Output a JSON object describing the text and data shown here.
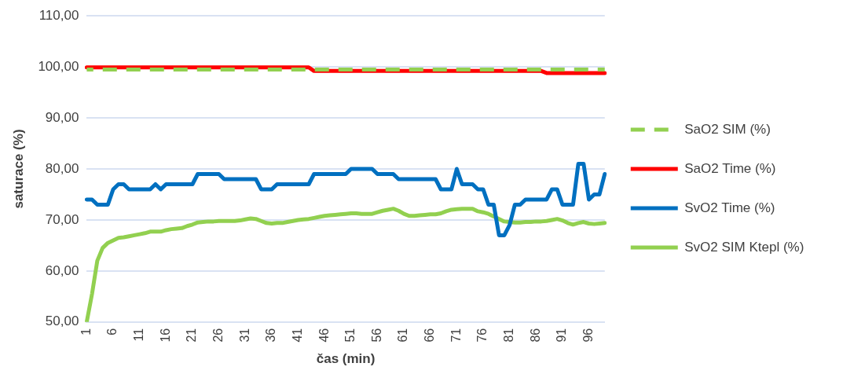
{
  "chart_data": {
    "type": "line",
    "xlabel": "čas (min)",
    "ylabel": "saturace (%)",
    "categories": [
      "1",
      null,
      null,
      null,
      null,
      "6",
      null,
      null,
      null,
      null,
      "11",
      null,
      null,
      null,
      null,
      "16",
      null,
      null,
      null,
      null,
      "21",
      null,
      null,
      null,
      null,
      "26",
      null,
      null,
      null,
      null,
      "31",
      null,
      null,
      null,
      null,
      "36",
      null,
      null,
      null,
      null,
      "41",
      null,
      null,
      null,
      null,
      "46",
      null,
      null,
      null,
      null,
      "51",
      null,
      null,
      null,
      null,
      "56",
      null,
      null,
      null,
      null,
      "61",
      null,
      null,
      null,
      null,
      "66",
      null,
      null,
      null,
      null,
      "71",
      null,
      null,
      null,
      null,
      "76",
      null,
      null,
      null,
      null,
      "81",
      null,
      null,
      null,
      null,
      "86",
      null,
      null,
      null,
      null,
      "91",
      null,
      null,
      null,
      null,
      "96",
      null,
      null,
      null
    ],
    "series": [
      {
        "name": "SaO2 SIM (%)",
        "color": "#92d050",
        "line_style": "dashed",
        "values": [
          99.5,
          99.5,
          99.5,
          99.5,
          99.5,
          99.5,
          99.5,
          99.5,
          99.5,
          99.5,
          99.5,
          99.5,
          99.5,
          99.5,
          99.5,
          99.5,
          99.5,
          99.5,
          99.5,
          99.5,
          99.5,
          99.5,
          99.5,
          99.5,
          99.5,
          99.5,
          99.5,
          99.5,
          99.5,
          99.5,
          99.5,
          99.5,
          99.5,
          99.5,
          99.5,
          99.5,
          99.5,
          99.5,
          99.5,
          99.5,
          99.5,
          99.5,
          99.5,
          99.5,
          99.5,
          99.5,
          99.5,
          99.5,
          99.5,
          99.5,
          99.5,
          99.5,
          99.5,
          99.5,
          99.5,
          99.5,
          99.5,
          99.5,
          99.5,
          99.5,
          99.5,
          99.5,
          99.5,
          99.5,
          99.5,
          99.5,
          99.5,
          99.5,
          99.5,
          99.5,
          99.5,
          99.5,
          99.5,
          99.5,
          99.5,
          99.5,
          99.5,
          99.5,
          99.5,
          99.5,
          99.5,
          99.5,
          99.5,
          99.5,
          99.5,
          99.5,
          99.5,
          99.5,
          99.5,
          99.5,
          99.5,
          99.5,
          99.5,
          99.5,
          99.5,
          99.5,
          99.5,
          99.5,
          99.5
        ]
      },
      {
        "name": "SaO2 Time (%)",
        "color": "#ff0000",
        "line_style": "solid",
        "values": [
          99.9,
          99.9,
          99.9,
          99.9,
          99.9,
          99.9,
          99.9,
          99.9,
          99.9,
          99.9,
          99.9,
          99.9,
          99.9,
          99.9,
          99.9,
          99.9,
          99.9,
          99.9,
          99.9,
          99.9,
          99.9,
          99.9,
          99.9,
          99.9,
          99.9,
          99.9,
          99.9,
          99.9,
          99.9,
          99.9,
          99.9,
          99.9,
          99.9,
          99.9,
          99.9,
          99.9,
          99.9,
          99.9,
          99.9,
          99.9,
          99.9,
          99.9,
          99.9,
          99.2,
          99.2,
          99.2,
          99.2,
          99.2,
          99.2,
          99.2,
          99.2,
          99.2,
          99.2,
          99.2,
          99.2,
          99.2,
          99.2,
          99.2,
          99.2,
          99.2,
          99.2,
          99.2,
          99.2,
          99.2,
          99.2,
          99.2,
          99.2,
          99.2,
          99.2,
          99.2,
          99.2,
          99.2,
          99.2,
          99.2,
          99.2,
          99.2,
          99.2,
          99.2,
          99.2,
          99.2,
          99.2,
          99.2,
          99.2,
          99.2,
          99.2,
          99.2,
          99.2,
          98.8,
          98.8,
          98.8,
          98.8,
          98.8,
          98.8,
          98.8,
          98.8,
          98.8,
          98.8,
          98.8,
          98.8
        ]
      },
      {
        "name": "SvO2 Time (%)",
        "color": "#0070c0",
        "line_style": "solid",
        "values": [
          74,
          74,
          73,
          73,
          73,
          76,
          77,
          77,
          76,
          76,
          76,
          76,
          76,
          77,
          76,
          77,
          77,
          77,
          77,
          77,
          77,
          79,
          79,
          79,
          79,
          79,
          78,
          78,
          78,
          78,
          78,
          78,
          78,
          76,
          76,
          76,
          77,
          77,
          77,
          77,
          77,
          77,
          77,
          79,
          79,
          79,
          79,
          79,
          79,
          79,
          80,
          80,
          80,
          80,
          80,
          79,
          79,
          79,
          79,
          78,
          78,
          78,
          78,
          78,
          78,
          78,
          78,
          76,
          76,
          76,
          80,
          77,
          77,
          77,
          76,
          76,
          73,
          73,
          67,
          67,
          69,
          73,
          73,
          74,
          74,
          74,
          74,
          74,
          76,
          76,
          73,
          73,
          73,
          81,
          81,
          74,
          75,
          75,
          79
        ]
      },
      {
        "name": "SvO2 SIM Ktepl (%)",
        "color": "#92d050",
        "line_style": "solid",
        "values": [
          50,
          55.5,
          62,
          64.5,
          65.5,
          66,
          66.5,
          66.6,
          66.8,
          67,
          67.2,
          67.4,
          67.7,
          67.7,
          67.7,
          68,
          68.2,
          68.3,
          68.4,
          68.8,
          69.1,
          69.5,
          69.6,
          69.7,
          69.7,
          69.8,
          69.8,
          69.8,
          69.8,
          69.9,
          70.1,
          70.3,
          70.2,
          69.8,
          69.4,
          69.3,
          69.4,
          69.4,
          69.6,
          69.8,
          70,
          70.1,
          70.2,
          70.4,
          70.6,
          70.8,
          70.9,
          71,
          71.1,
          71.2,
          71.3,
          71.3,
          71.2,
          71.2,
          71.2,
          71.5,
          71.8,
          72,
          72.2,
          71.8,
          71.2,
          70.8,
          70.8,
          70.9,
          71,
          71.1,
          71.1,
          71.3,
          71.7,
          72,
          72.1,
          72.2,
          72.2,
          72.2,
          71.7,
          71.5,
          71.2,
          70.7,
          70.2,
          69.7,
          69.6,
          69.5,
          69.5,
          69.6,
          69.6,
          69.7,
          69.7,
          69.8,
          70,
          70.2,
          69.9,
          69.4,
          69.1,
          69.4,
          69.6,
          69.3,
          69.2,
          69.3,
          69.4
        ]
      }
    ],
    "ylim": [
      50,
      110
    ],
    "yticks": [
      {
        "value": 50,
        "label": "50,00"
      },
      {
        "value": 60,
        "label": "60,00"
      },
      {
        "value": 70,
        "label": "70,00"
      },
      {
        "value": 80,
        "label": "80,00"
      },
      {
        "value": 90,
        "label": "90,00"
      },
      {
        "value": 100,
        "label": "100,00"
      },
      {
        "value": 110,
        "label": "110,00"
      }
    ],
    "grid": "y",
    "legend": "right",
    "marker": "none"
  }
}
